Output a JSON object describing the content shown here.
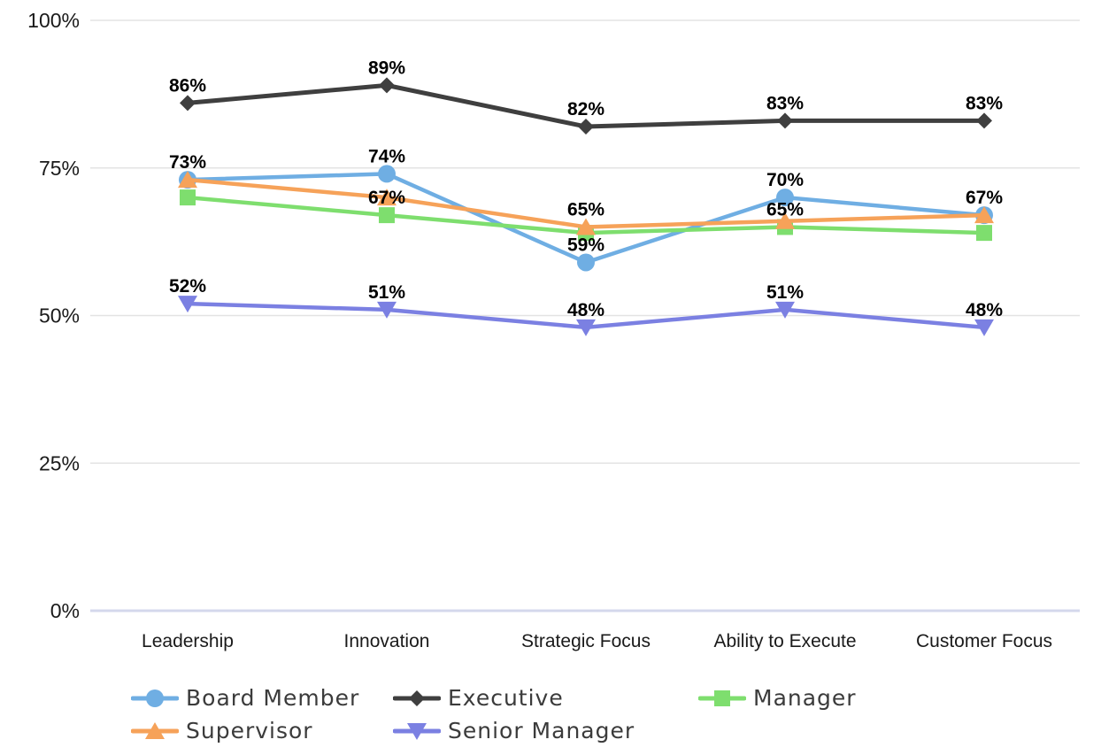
{
  "chart_data": {
    "type": "line",
    "title": "",
    "xlabel": "",
    "ylabel": "",
    "ylim": [
      0,
      100
    ],
    "grid": true,
    "legend_position": "bottom",
    "categories": [
      "Leadership",
      "Innovation",
      "Strategic Focus",
      "Ability to Execute",
      "Customer Focus"
    ],
    "y_ticks": [
      {
        "label": "100%",
        "value": 100
      },
      {
        "label": "75%",
        "value": 75
      },
      {
        "label": "50%",
        "value": 50
      },
      {
        "label": "25%",
        "value": 25
      },
      {
        "label": "0%",
        "value": 0
      }
    ],
    "series": [
      {
        "name": "Board Member",
        "color": "#6FAEE3",
        "marker": "circle",
        "values": [
          73,
          74,
          59,
          70,
          67
        ],
        "labels": [
          "73%",
          "74%",
          "59%",
          "70%",
          null
        ]
      },
      {
        "name": "Executive",
        "color": "#3F3F3F",
        "marker": "diamond",
        "values": [
          86,
          89,
          82,
          83,
          83
        ],
        "labels": [
          "86%",
          "89%",
          "82%",
          "83%",
          "83%"
        ]
      },
      {
        "name": "Manager",
        "color": "#7EDE6E",
        "marker": "square",
        "values": [
          70,
          67,
          64,
          65,
          64
        ],
        "labels": [
          null,
          "67%",
          null,
          "65%",
          null
        ]
      },
      {
        "name": "Supervisor",
        "color": "#F6A259",
        "marker": "triangle-up",
        "values": [
          73,
          70,
          65,
          66,
          67
        ],
        "labels": [
          null,
          null,
          "65%",
          null,
          "67%"
        ]
      },
      {
        "name": "Senior Manager",
        "color": "#7B80E2",
        "marker": "triangle-down",
        "values": [
          52,
          51,
          48,
          51,
          48
        ],
        "labels": [
          "52%",
          "51%",
          "48%",
          "51%",
          "48%"
        ]
      }
    ],
    "colors": {
      "gridline": "#E3E3E3",
      "axis_line": "#D4D8EC",
      "tick_text": "#1a1a1a",
      "data_label_text": "#000000"
    }
  }
}
